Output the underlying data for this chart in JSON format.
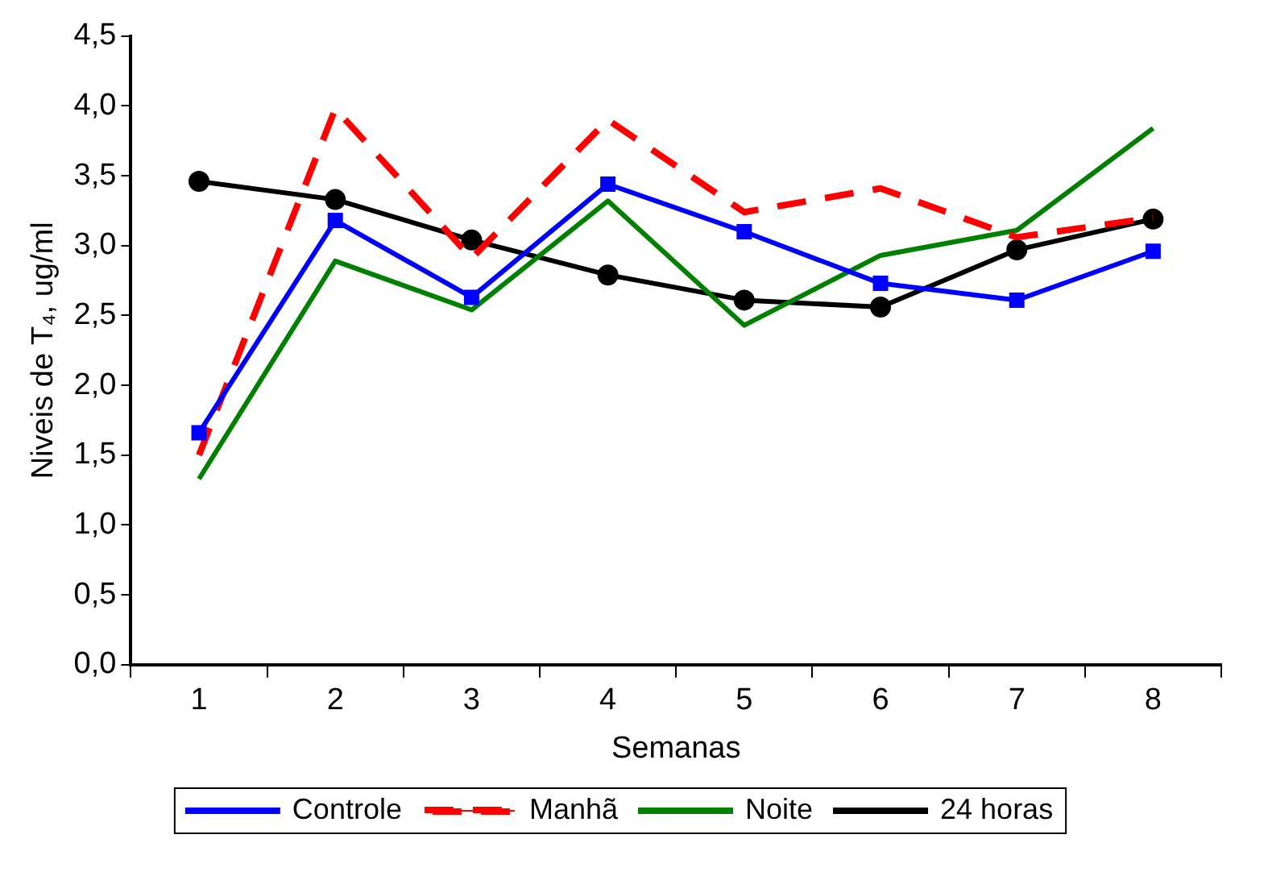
{
  "chart_data": {
    "type": "line",
    "xlabel": "Semanas",
    "ylabel": "Niveis de T₄, ug/ml",
    "categories": [
      "1",
      "2",
      "3",
      "4",
      "5",
      "6",
      "7",
      "8"
    ],
    "series": [
      {
        "name": "Controle",
        "color": "#0000ff",
        "marker": "square",
        "line_style": "solid",
        "values": [
          1.66,
          3.18,
          2.63,
          3.44,
          3.1,
          2.73,
          2.61,
          2.96
        ]
      },
      {
        "name": "Manhã",
        "color": "#ff0000",
        "marker": "none",
        "line_style": "dashed",
        "values": [
          1.5,
          3.98,
          2.91,
          3.9,
          3.24,
          3.41,
          3.06,
          3.2
        ]
      },
      {
        "name": "Noite",
        "color": "#008000",
        "marker": "none",
        "line_style": "solid",
        "values": [
          1.33,
          2.89,
          2.54,
          3.32,
          2.43,
          2.93,
          3.11,
          3.84
        ]
      },
      {
        "name": "24 horas",
        "color": "#000000",
        "marker": "circle",
        "line_style": "solid",
        "values": [
          3.46,
          3.33,
          3.04,
          2.79,
          2.61,
          2.56,
          2.97,
          3.19
        ]
      }
    ],
    "ylim": [
      0,
      4.5
    ],
    "yticks": [
      {
        "value": 0,
        "label": "0,0"
      },
      {
        "value": 0.5,
        "label": "0,5"
      },
      {
        "value": 1,
        "label": "1,0"
      },
      {
        "value": 1.5,
        "label": "1,5"
      },
      {
        "value": 2,
        "label": "2,0"
      },
      {
        "value": 2.5,
        "label": "2,5"
      },
      {
        "value": 3,
        "label": "3,0"
      },
      {
        "value": 3.5,
        "label": "3,5"
      },
      {
        "value": 4,
        "label": "4,0"
      },
      {
        "value": 4.5,
        "label": "4,5"
      }
    ],
    "grid": false,
    "legend": "bottom"
  }
}
